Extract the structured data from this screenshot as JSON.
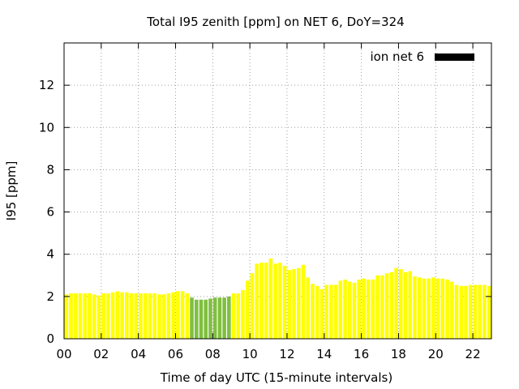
{
  "chart_data": {
    "type": "bar",
    "title": "Total I95 zenith [ppm] on NET 6, DoY=324",
    "xlabel": "Time of day UTC (15-minute intervals)",
    "ylabel": "I95 [ppm]",
    "xlim": [
      0,
      23
    ],
    "ylim": [
      0,
      14
    ],
    "x_ticks": [
      "00",
      "02",
      "04",
      "06",
      "08",
      "10",
      "12",
      "14",
      "16",
      "18",
      "20",
      "22"
    ],
    "x_tick_values": [
      0,
      2,
      4,
      6,
      8,
      10,
      12,
      14,
      16,
      18,
      20,
      22
    ],
    "y_ticks": [
      "0",
      "2",
      "4",
      "6",
      "8",
      "10",
      "12"
    ],
    "y_tick_values": [
      0,
      2,
      4,
      6,
      8,
      10,
      12
    ],
    "grid": true,
    "legend_position": "top-right",
    "legend_color": "#000000",
    "series": [
      {
        "name": "ion net 6",
        "color": "#ffff00",
        "alt_color": "#7fbf3f",
        "values": [
          2.1,
          2.15,
          2.15,
          2.15,
          2.15,
          2.15,
          2.1,
          2.05,
          2.15,
          2.15,
          2.2,
          2.25,
          2.2,
          2.2,
          2.15,
          2.15,
          2.15,
          2.15,
          2.15,
          2.15,
          2.1,
          2.1,
          2.15,
          2.2,
          2.25,
          2.25,
          2.15,
          1.95,
          1.85,
          1.85,
          1.85,
          1.9,
          1.95,
          1.95,
          1.95,
          2.0,
          2.15,
          2.15,
          2.3,
          2.75,
          3.1,
          3.55,
          3.6,
          3.6,
          3.8,
          3.55,
          3.6,
          3.45,
          3.25,
          3.3,
          3.35,
          3.5,
          2.9,
          2.6,
          2.5,
          2.35,
          2.55,
          2.55,
          2.55,
          2.75,
          2.8,
          2.7,
          2.65,
          2.8,
          2.85,
          2.8,
          2.8,
          3.0,
          3.0,
          3.1,
          3.15,
          3.35,
          3.3,
          3.15,
          3.2,
          2.95,
          2.9,
          2.85,
          2.85,
          2.9,
          2.85,
          2.85,
          2.8,
          2.7,
          2.55,
          2.5,
          2.5,
          2.55,
          2.55,
          2.55,
          2.55,
          2.5
        ],
        "alt_color_indices": [
          27,
          28,
          29,
          30,
          31,
          32,
          33,
          34,
          35
        ]
      }
    ]
  }
}
